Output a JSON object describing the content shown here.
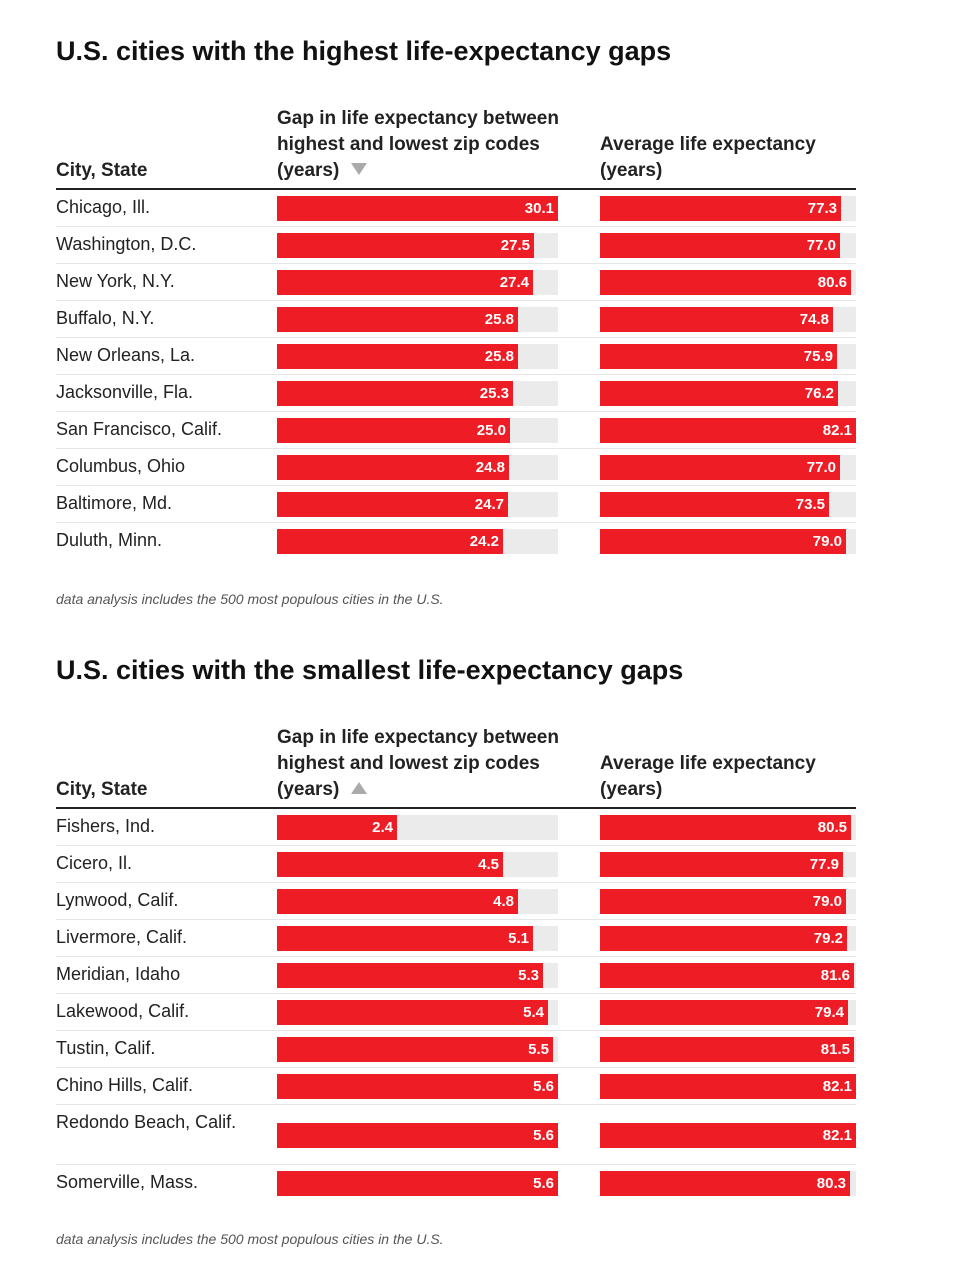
{
  "chart_data": [
    {
      "type": "table",
      "title": "U.S. cities with the highest life-expectancy gaps",
      "columns": {
        "city": "City, State",
        "gap": "Gap in life expectancy between highest and lowest zip codes (years)",
        "avg": "Average life expectancy (years)"
      },
      "sort": "descending",
      "gap_max": 30.1,
      "avg_max": 82.1,
      "rows": [
        {
          "city": "Chicago, Ill.",
          "gap": "30.1",
          "avg": "77.3"
        },
        {
          "city": "Washington, D.C.",
          "gap": "27.5",
          "avg": "77.0"
        },
        {
          "city": "New York, N.Y.",
          "gap": "27.4",
          "avg": "80.6"
        },
        {
          "city": "Buffalo, N.Y.",
          "gap": "25.8",
          "avg": "74.8"
        },
        {
          "city": "New Orleans, La.",
          "gap": "25.8",
          "avg": "75.9"
        },
        {
          "city": "Jacksonville, Fla.",
          "gap": "25.3",
          "avg": "76.2"
        },
        {
          "city": "San Francisco, Calif.",
          "gap": "25.0",
          "avg": "82.1"
        },
        {
          "city": "Columbus, Ohio",
          "gap": "24.8",
          "avg": "77.0"
        },
        {
          "city": "Baltimore, Md.",
          "gap": "24.7",
          "avg": "73.5"
        },
        {
          "city": "Duluth, Minn.",
          "gap": "24.2",
          "avg": "79.0"
        }
      ],
      "note": "data analysis includes the 500 most populous cities in the U.S."
    },
    {
      "type": "table",
      "title": "U.S. cities with the smallest life-expectancy gaps",
      "columns": {
        "city": "City, State",
        "gap": "Gap in life expectancy between highest and lowest zip codes (years)",
        "avg": "Average life expectancy (years)"
      },
      "sort": "ascending",
      "gap_max": 5.6,
      "avg_max": 82.1,
      "rows": [
        {
          "city": "Fishers, Ind.",
          "gap": "2.4",
          "avg": "80.5"
        },
        {
          "city": "Cicero, Il.",
          "gap": "4.5",
          "avg": "77.9"
        },
        {
          "city": "Lynwood, Calif.",
          "gap": "4.8",
          "avg": "79.0"
        },
        {
          "city": "Livermore, Calif.",
          "gap": "5.1",
          "avg": "79.2"
        },
        {
          "city": "Meridian, Idaho",
          "gap": "5.3",
          "avg": "81.6"
        },
        {
          "city": "Lakewood, Calif.",
          "gap": "5.4",
          "avg": "79.4"
        },
        {
          "city": "Tustin, Calif.",
          "gap": "5.5",
          "avg": "81.5"
        },
        {
          "city": "Chino Hills, Calif.",
          "gap": "5.6",
          "avg": "82.1"
        },
        {
          "city": "Redondo Beach, Calif.",
          "gap": "5.6",
          "avg": "82.1"
        },
        {
          "city": "Somerville, Mass.",
          "gap": "5.6",
          "avg": "80.3"
        }
      ],
      "note": "data analysis includes the 500 most populous cities in the U.S."
    }
  ],
  "colors": {
    "bar": "#ee1c25",
    "track": "#ebebeb",
    "arrow": "#aaaaaa"
  }
}
